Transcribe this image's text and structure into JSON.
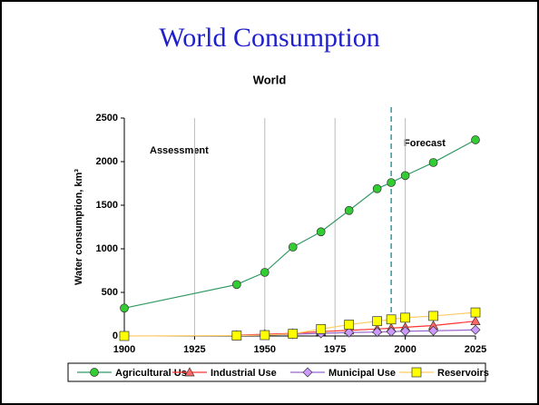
{
  "chart_data": {
    "type": "line",
    "title": "World Consumption",
    "subtitle": "World",
    "y_label": "Water consumption, km³",
    "annotations": [
      "Assessment",
      "Forecast"
    ],
    "forecast_line_x": 1995,
    "x": [
      1900,
      1940,
      1950,
      1960,
      1970,
      1980,
      1990,
      1995,
      2000,
      2010,
      2025
    ],
    "series": [
      {
        "name": "Agricultural Use",
        "color": "#33cc33",
        "line_color": "#339966",
        "marker": "circle",
        "values": [
          320,
          590,
          730,
          1020,
          1195,
          1440,
          1690,
          1760,
          1840,
          1990,
          2250
        ]
      },
      {
        "name": "Industrial Use",
        "color": "#ff6666",
        "line_color": "#ff3333",
        "marker": "triangle",
        "values": [
          null,
          10,
          20,
          30,
          50,
          65,
          80,
          90,
          100,
          120,
          170
        ]
      },
      {
        "name": "Municipal Use",
        "color": "#cc99ff",
        "line_color": "#9966cc",
        "marker": "diamond",
        "values": [
          null,
          5,
          10,
          20,
          30,
          40,
          45,
          50,
          55,
          60,
          70
        ]
      },
      {
        "name": "Reservoirs",
        "color": "#ffff00",
        "line_color": "#ffcc66",
        "marker": "square",
        "values": [
          0,
          5,
          10,
          25,
          80,
          130,
          170,
          190,
          210,
          230,
          270
        ]
      }
    ],
    "xlim": [
      1900,
      2025
    ],
    "xticks": [
      1900,
      1925,
      1950,
      1975,
      2000,
      2025
    ],
    "ylim": [
      0,
      2500
    ],
    "yticks": [
      0,
      500,
      1000,
      1500,
      2000,
      2500
    ],
    "grid": "x"
  }
}
